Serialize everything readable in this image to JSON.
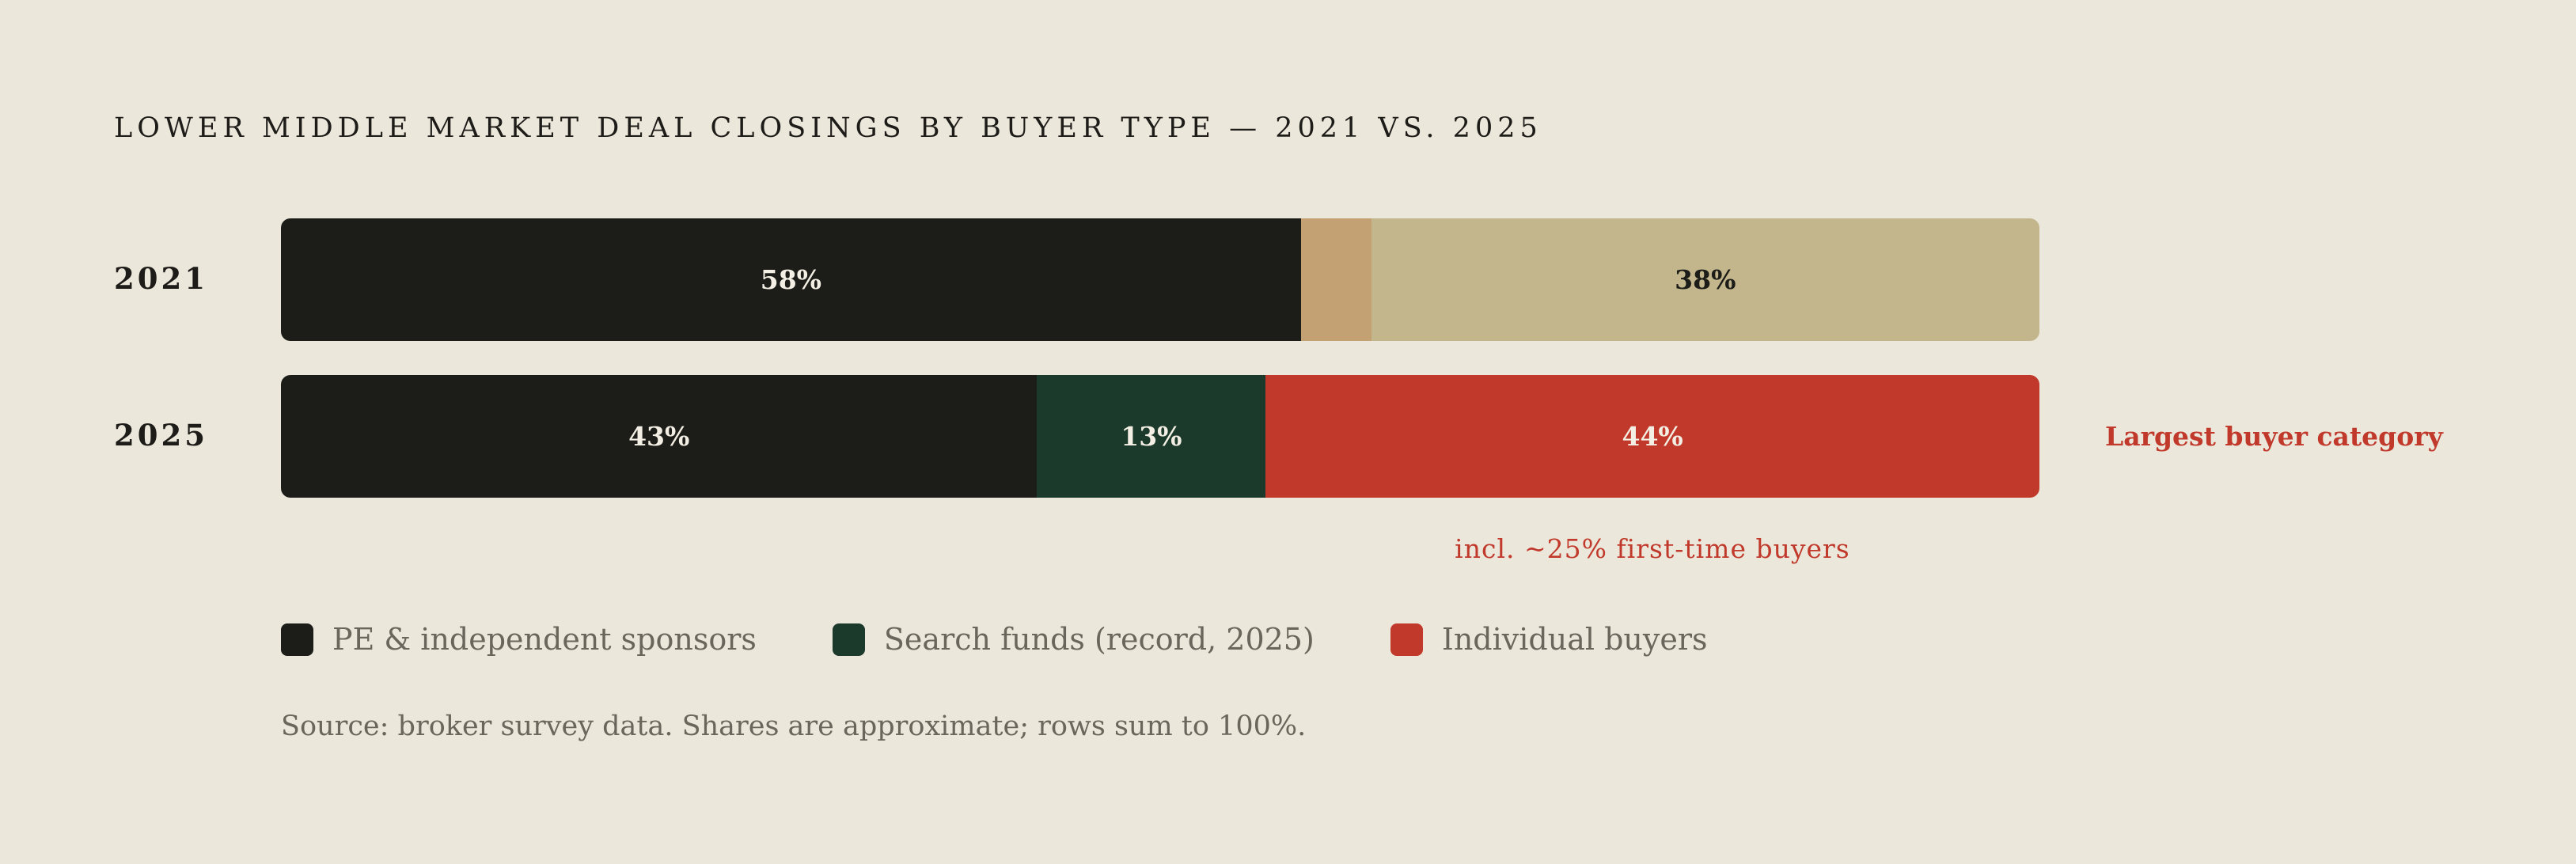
{
  "chart_data": {
    "type": "bar",
    "orientation": "horizontal",
    "stacked": true,
    "title": "LOWER MIDDLE MARKET DEAL CLOSINGS BY BUYER TYPE — 2021 VS. 2025",
    "categories": [
      "2021",
      "2025"
    ],
    "xlim": [
      0,
      100
    ],
    "grid": false,
    "legend_position": "bottom-left",
    "rows": [
      {
        "label": "2021",
        "segments": [
          {
            "series": "PE & independent sponsors",
            "value": 58,
            "label": "58%",
            "color": "#1c1c18",
            "label_color": "#f4efe4"
          },
          {
            "series": "Search funds (record, 2025)",
            "value": 4,
            "label": "",
            "color": "#c4a172",
            "label_color": "#1c1c18"
          },
          {
            "series": "Individual buyers",
            "value": 38,
            "label": "38%",
            "color": "#c4b68c",
            "label_color": "#1c1c18"
          }
        ]
      },
      {
        "label": "2025",
        "segments": [
          {
            "series": "PE & independent sponsors",
            "value": 43,
            "label": "43%",
            "color": "#1c1c18",
            "label_color": "#f4efe4"
          },
          {
            "series": "Search funds (record, 2025)",
            "value": 13,
            "label": "13%",
            "color": "#1c3a2b",
            "label_color": "#f4efe4"
          },
          {
            "series": "Individual buyers",
            "value": 44,
            "label": "44%",
            "color": "#c0392b",
            "label_color": "#f4efe4"
          }
        ]
      }
    ],
    "annotations": {
      "right_of_2025": "Largest buyer category",
      "below_2025": "incl. ~25% first-time buyers"
    },
    "legend": [
      {
        "label": "PE & independent sponsors",
        "color": "#1c1c18"
      },
      {
        "label": "Search funds (record, 2025)",
        "color": "#1c3a2b"
      },
      {
        "label": "Individual buyers",
        "color": "#c0392b"
      }
    ],
    "source": "Source: broker survey data. Shares are approximate; rows sum to 100%."
  }
}
